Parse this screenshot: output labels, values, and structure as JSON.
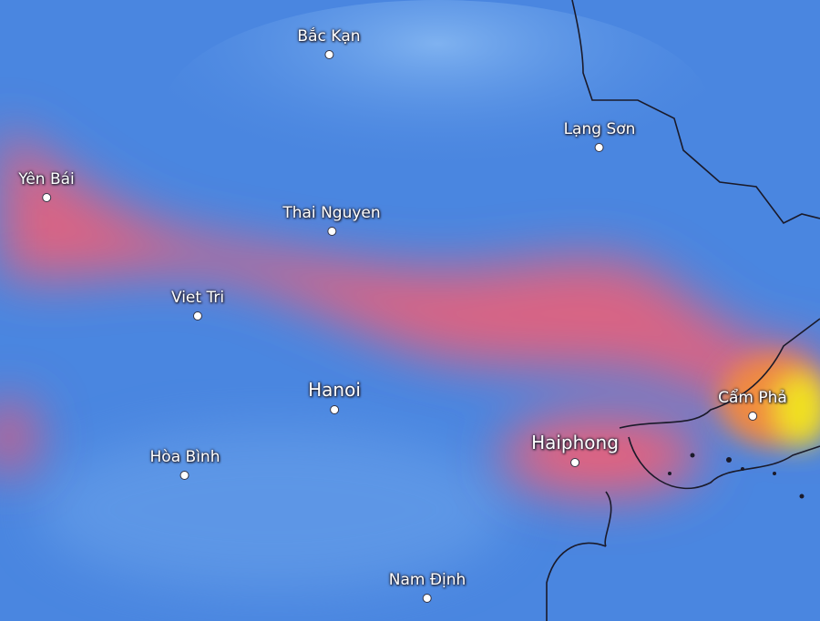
{
  "map": {
    "colors": {
      "low": "#4a86e0",
      "mid": "#e8607a",
      "high": "#f0e020",
      "border": "#1a1a2a"
    },
    "cities": [
      {
        "name": "Bắc Kạn",
        "size": "normal"
      },
      {
        "name": "Lạng Sơn",
        "size": "normal"
      },
      {
        "name": "Yên Bái",
        "size": "normal"
      },
      {
        "name": "Thai Nguyen",
        "size": "normal"
      },
      {
        "name": "Viet Tri",
        "size": "normal"
      },
      {
        "name": "Hanoi",
        "size": "big"
      },
      {
        "name": "Hòa Bình",
        "size": "normal"
      },
      {
        "name": "Haiphong",
        "size": "big"
      },
      {
        "name": "Cẩm Phả",
        "size": "normal"
      },
      {
        "name": "Nam Định",
        "size": "normal"
      }
    ]
  }
}
